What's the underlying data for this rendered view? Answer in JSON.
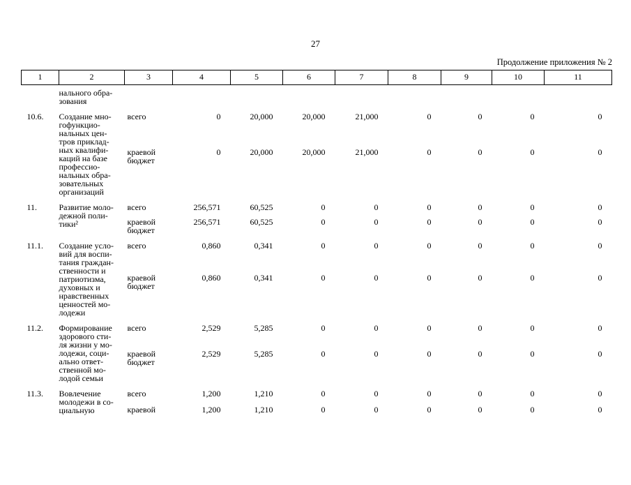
{
  "page": {
    "number": "27",
    "continuation_note": "Продолжение приложения № 2"
  },
  "table": {
    "columns": [
      "1",
      "2",
      "3",
      "4",
      "5",
      "6",
      "7",
      "8",
      "9",
      "10",
      "11"
    ],
    "rows": [
      {
        "num": "",
        "name": "нального обра-\nзования",
        "entries": []
      },
      {
        "num": "10.6.",
        "name": "Создание мно-\nгофункцио-\nнальных цен-\nтров приклад-\nных квалифи-\nкаций на базе\nпрофессио-\nнальных обра-\nзовательных\nорганизаций",
        "entries": [
          {
            "label": "всего",
            "values": [
              "0",
              "20,000",
              "20,000",
              "21,000",
              "0",
              "0",
              "0",
              "0"
            ]
          },
          {
            "label": "краевой\nбюджет",
            "values": [
              "0",
              "20,000",
              "20,000",
              "21,000",
              "0",
              "0",
              "0",
              "0"
            ]
          }
        ]
      },
      {
        "num": "11.",
        "name": "Развитие моло-\nдежной поли-\nтики²",
        "entries": [
          {
            "label": "всего",
            "values": [
              "256,571",
              "60,525",
              "0",
              "0",
              "0",
              "0",
              "0",
              "0"
            ]
          },
          {
            "label": "краевой\nбюджет",
            "values": [
              "256,571",
              "60,525",
              "0",
              "0",
              "0",
              "0",
              "0",
              "0"
            ]
          }
        ]
      },
      {
        "num": "11.1.",
        "name": "Создание усло-\nвий для воспи-\nтания граждан-\nственности и\nпатриотизма,\nдуховных и\nнравственных\nценностей мо-\nлодежи",
        "entries": [
          {
            "label": "всего",
            "values": [
              "0,860",
              "0,341",
              "0",
              "0",
              "0",
              "0",
              "0",
              "0"
            ]
          },
          {
            "label": "краевой\nбюджет",
            "values": [
              "0,860",
              "0,341",
              "0",
              "0",
              "0",
              "0",
              "0",
              "0"
            ]
          }
        ]
      },
      {
        "num": "11.2.",
        "name": "Формирование\nздорового сти-\nля жизни у мо-\nлодежи, соци-\nально ответ-\nственной мо-\nлодой семьи",
        "entries": [
          {
            "label": "всего",
            "values": [
              "2,529",
              "5,285",
              "0",
              "0",
              "0",
              "0",
              "0",
              "0"
            ]
          },
          {
            "label": "краевой\nбюджет",
            "values": [
              "2,529",
              "5,285",
              "0",
              "0",
              "0",
              "0",
              "0",
              "0"
            ]
          }
        ]
      },
      {
        "num": "11.3.",
        "name": "Вовлечение\nмолодежи в со-\nциальную",
        "entries": [
          {
            "label": "всего",
            "values": [
              "1,200",
              "1,210",
              "0",
              "0",
              "0",
              "0",
              "0",
              "0"
            ]
          },
          {
            "label": "краевой",
            "values": [
              "1,200",
              "1,210",
              "0",
              "0",
              "0",
              "0",
              "0",
              "0"
            ]
          }
        ]
      }
    ]
  }
}
